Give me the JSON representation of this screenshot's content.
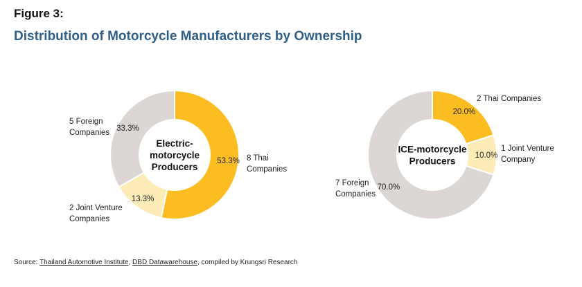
{
  "figure_label": "Figure 3:",
  "title": "Distribution of Motorcycle Manufacturers by Ownership",
  "source": {
    "prefix": "Source: ",
    "link1": "Thailand Automotive Institute",
    "sep": ", ",
    "link2": "DBD Datawarehouse",
    "suffix": ", compiled by Krungsri Research"
  },
  "colors": {
    "thai": "#fbbd22",
    "joint_venture": "#fdebb8",
    "foreign": "#dcd7d4"
  },
  "chart_data": [
    {
      "type": "pie",
      "donut": true,
      "center_label": [
        "Electric-",
        "motorcycle",
        "Producers"
      ],
      "slices": [
        {
          "name": "Thai",
          "value": 53.3,
          "percent_label": "53.3%",
          "outer_label": [
            "8 Thai",
            "Companies"
          ]
        },
        {
          "name": "Joint Venture",
          "value": 13.3,
          "percent_label": "13.3%",
          "outer_label": [
            "2 Joint Venture",
            "Companies"
          ]
        },
        {
          "name": "Foreign",
          "value": 33.3,
          "percent_label": "33.3%",
          "outer_label": [
            "5 Foreign",
            "Companies"
          ]
        }
      ]
    },
    {
      "type": "pie",
      "donut": true,
      "center_label": [
        "ICE-motorcycle",
        "Producers"
      ],
      "slices": [
        {
          "name": "Thai",
          "value": 20.0,
          "percent_label": "20.0%",
          "outer_label": [
            "2 Thai Companies"
          ]
        },
        {
          "name": "Joint Venture",
          "value": 10.0,
          "percent_label": "10.0%",
          "outer_label": [
            "1 Joint Venture",
            "Company"
          ]
        },
        {
          "name": "Foreign",
          "value": 70.0,
          "percent_label": "70.0%",
          "outer_label": [
            "7 Foreign",
            "Companies"
          ]
        }
      ]
    }
  ]
}
